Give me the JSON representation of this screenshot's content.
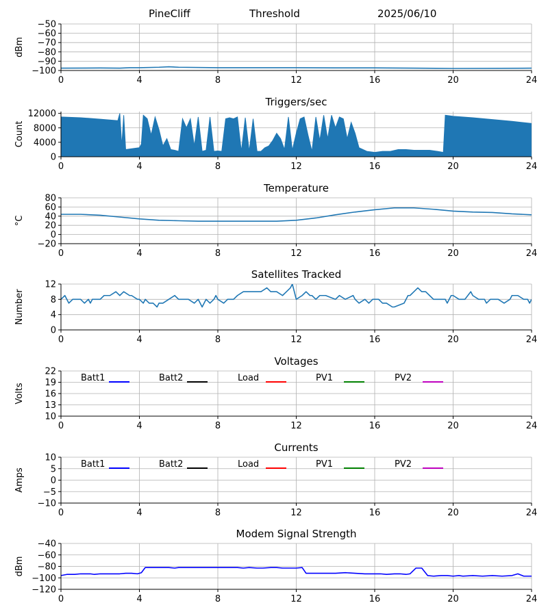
{
  "header": {
    "site": "PineCliff",
    "mode": "Threshold",
    "date": "2025/06/10"
  },
  "colors": {
    "series": "#1f77b4",
    "grid": "#b0b0b0",
    "batt1": "#0000ff",
    "batt2": "#000000",
    "load": "#ff0000",
    "pv1": "#008000",
    "pv2": "#bf00bf",
    "modem": "#0000ff"
  },
  "chart_data": [
    {
      "type": "line",
      "title": "",
      "ylabel": "dBm",
      "xlim": [
        0,
        24
      ],
      "xticks": [
        0,
        4,
        8,
        12,
        16,
        20,
        24
      ],
      "ylim": [
        -100,
        -50
      ],
      "yticks": [
        -100,
        -90,
        -80,
        -70,
        -60,
        -50
      ],
      "grid": true,
      "series": [
        {
          "color": "#1f77b4",
          "x": [
            0,
            2,
            3,
            3.5,
            4,
            5,
            5.5,
            6,
            8,
            12,
            14,
            16,
            18,
            20,
            24
          ],
          "y": [
            -97.5,
            -97.3,
            -97.5,
            -97,
            -97,
            -96.5,
            -96,
            -96.5,
            -97,
            -97,
            -97.2,
            -97.2,
            -97.5,
            -97.8,
            -97.5
          ]
        }
      ]
    },
    {
      "type": "area",
      "title": "Triggers/sec",
      "ylabel": "Count",
      "xlim": [
        0,
        24
      ],
      "xticks": [
        0,
        4,
        8,
        12,
        16,
        20,
        24
      ],
      "ylim": [
        0,
        12500
      ],
      "yticks": [
        0,
        4000,
        8000,
        12000
      ],
      "grid": true,
      "series": [
        {
          "color": "#1f77b4",
          "x": [
            0,
            1,
            2,
            2.9,
            3.0,
            3.1,
            3.2,
            3.3,
            4.0,
            4.1,
            4.2,
            4.4,
            4.6,
            4.8,
            5.0,
            5.2,
            5.4,
            5.6,
            5.8,
            6.0,
            6.2,
            6.4,
            6.6,
            6.8,
            7.0,
            7.2,
            7.4,
            7.6,
            7.8,
            8.0,
            8.2,
            8.4,
            8.6,
            8.8,
            9.0,
            9.2,
            9.4,
            9.6,
            9.8,
            10.0,
            10.2,
            10.4,
            10.6,
            10.8,
            11.0,
            11.2,
            11.4,
            11.6,
            11.8,
            12.0,
            12.2,
            12.4,
            12.6,
            12.8,
            13.0,
            13.2,
            13.4,
            13.6,
            13.8,
            14.0,
            14.2,
            14.4,
            14.6,
            14.8,
            15.0,
            15.2,
            15.6,
            16.0,
            16.4,
            16.8,
            17.2,
            17.6,
            18.0,
            18.4,
            18.8,
            19.2,
            19.5,
            19.6,
            20,
            21,
            22,
            23,
            24
          ],
          "y": [
            11000,
            10800,
            10400,
            10000,
            12000,
            3000,
            11500,
            2000,
            2500,
            3500,
            11500,
            10500,
            6000,
            11000,
            7500,
            3000,
            5000,
            2000,
            1800,
            1500,
            10500,
            8000,
            10500,
            3000,
            11000,
            1500,
            1800,
            11000,
            1500,
            1600,
            1500,
            10500,
            10800,
            10500,
            11000,
            1500,
            10800,
            1500,
            10500,
            1500,
            1500,
            2500,
            3000,
            4500,
            6500,
            5000,
            2000,
            11000,
            1800,
            6500,
            10500,
            11000,
            6000,
            1500,
            11000,
            4500,
            11500,
            5000,
            11500,
            8000,
            11000,
            10500,
            5000,
            9500,
            6500,
            2500,
            1500,
            1200,
            1500,
            1500,
            2000,
            2000,
            1800,
            1800,
            1800,
            1500,
            1200,
            11500,
            11200,
            10800,
            10300,
            9800,
            9200
          ]
        }
      ]
    },
    {
      "type": "line",
      "title": "Temperature",
      "ylabel": "°C",
      "xlim": [
        0,
        24
      ],
      "xticks": [
        0,
        4,
        8,
        12,
        16,
        20,
        24
      ],
      "ylim": [
        -20,
        80
      ],
      "yticks": [
        -20,
        0,
        20,
        40,
        60,
        80
      ],
      "grid": true,
      "series": [
        {
          "color": "#1f77b4",
          "x": [
            0,
            1,
            2,
            3,
            4,
            5,
            6,
            7,
            8,
            9,
            10,
            11,
            12,
            13,
            14,
            15,
            16,
            17,
            18,
            19,
            20,
            21,
            22,
            23,
            24
          ],
          "y": [
            44,
            44,
            42,
            38,
            34,
            31,
            30,
            29,
            29,
            29,
            29,
            29,
            31,
            36,
            43,
            49,
            54,
            58,
            58,
            55,
            51,
            49,
            48,
            45,
            43
          ]
        }
      ]
    },
    {
      "type": "line",
      "title": "Satellites Tracked",
      "ylabel": "Number",
      "xlim": [
        0,
        24
      ],
      "xticks": [
        0,
        4,
        8,
        12,
        16,
        20,
        24
      ],
      "ylim": [
        0,
        12
      ],
      "yticks": [
        0,
        4,
        8,
        12
      ],
      "grid": true,
      "series": [
        {
          "color": "#1f77b4",
          "x": [
            0,
            0.2,
            0.3,
            0.4,
            0.6,
            1,
            1.2,
            1.4,
            1.5,
            1.6,
            2,
            2.2,
            2.5,
            2.8,
            3,
            3.2,
            3.5,
            3.6,
            3.9,
            4.0,
            4.2,
            4.3,
            4.5,
            4.7,
            4.9,
            5.0,
            5.2,
            5.5,
            5.8,
            6.0,
            6.2,
            6.5,
            6.8,
            7.0,
            7.2,
            7.4,
            7.6,
            7.8,
            7.9,
            8.0,
            8.3,
            8.5,
            8.8,
            9.0,
            9.3,
            9.8,
            10.2,
            10.5,
            10.7,
            11.0,
            11.3,
            11.5,
            11.7,
            11.8,
            11.9,
            12.0,
            12.3,
            12.5,
            12.7,
            12.8,
            13.0,
            13.2,
            13.5,
            14.0,
            14.2,
            14.5,
            14.9,
            15.0,
            15.2,
            15.5,
            15.7,
            15.9,
            16.0,
            16.2,
            16.4,
            16.6,
            16.9,
            17.0,
            17.5,
            17.7,
            17.8,
            18.0,
            18.2,
            18.4,
            18.6,
            18.8,
            19.0,
            19.3,
            19.6,
            19.7,
            19.9,
            20.0,
            20.3,
            20.6,
            20.9,
            21.0,
            21.3,
            21.6,
            21.7,
            21.9,
            22.0,
            22.3,
            22.6,
            22.9,
            23.0,
            23.3,
            23.6,
            23.8,
            23.9,
            24.0
          ],
          "y": [
            8,
            9,
            8,
            7,
            8,
            8,
            7,
            8,
            7,
            8,
            8,
            9,
            9,
            10,
            9,
            10,
            9,
            9,
            8,
            8,
            7,
            8,
            7,
            7,
            6,
            7,
            7,
            8,
            9,
            8,
            8,
            8,
            7,
            8,
            6,
            8,
            7,
            8,
            9,
            8,
            7,
            8,
            8,
            9,
            10,
            10,
            10,
            11,
            10,
            10,
            9,
            10,
            11,
            12,
            10,
            8,
            9,
            10,
            9,
            9,
            8,
            9,
            9,
            8,
            9,
            8,
            9,
            8,
            7,
            8,
            7,
            8,
            8,
            8,
            7,
            7,
            6,
            6,
            7,
            9,
            9,
            10,
            11,
            10,
            10,
            9,
            8,
            8,
            8,
            7,
            9,
            9,
            8,
            8,
            10,
            9,
            8,
            8,
            7,
            8,
            8,
            8,
            7,
            8,
            9,
            9,
            8,
            8,
            7,
            8
          ]
        }
      ]
    },
    {
      "type": "line",
      "title": "Voltages",
      "ylabel": "Volts",
      "xlim": [
        0,
        24
      ],
      "xticks": [
        0,
        4,
        8,
        12,
        16,
        20,
        24
      ],
      "ylim": [
        10,
        22
      ],
      "yticks": [
        10,
        13,
        16,
        19,
        22
      ],
      "grid": true,
      "legend": {
        "placement": "top",
        "entries": [
          {
            "name": "Batt1",
            "color": "#0000ff"
          },
          {
            "name": "Batt2",
            "color": "#000000"
          },
          {
            "name": "Load",
            "color": "#ff0000"
          },
          {
            "name": "PV1",
            "color": "#008000"
          },
          {
            "name": "PV2",
            "color": "#bf00bf"
          }
        ]
      },
      "series": []
    },
    {
      "type": "line",
      "title": "Currents",
      "ylabel": "Amps",
      "xlim": [
        0,
        24
      ],
      "xticks": [
        0,
        4,
        8,
        12,
        16,
        20,
        24
      ],
      "ylim": [
        -10,
        10
      ],
      "yticks": [
        -10,
        -5,
        0,
        5,
        10
      ],
      "grid": true,
      "legend": {
        "placement": "top",
        "entries": [
          {
            "name": "Batt1",
            "color": "#0000ff"
          },
          {
            "name": "Batt2",
            "color": "#000000"
          },
          {
            "name": "Load",
            "color": "#ff0000"
          },
          {
            "name": "PV1",
            "color": "#008000"
          },
          {
            "name": "PV2",
            "color": "#bf00bf"
          }
        ]
      },
      "series": []
    },
    {
      "type": "line",
      "title": "Modem Signal Strength",
      "ylabel": "dBm",
      "xlim": [
        0,
        24
      ],
      "xticks": [
        0,
        4,
        8,
        12,
        16,
        20,
        24
      ],
      "ylim": [
        -120,
        -40
      ],
      "yticks": [
        -120,
        -100,
        -80,
        -60,
        -40
      ],
      "grid": true,
      "series": [
        {
          "color": "#0000ff",
          "x": [
            0,
            0.3,
            0.7,
            1,
            1.5,
            1.7,
            2,
            2.5,
            3,
            3.3,
            3.6,
            3.9,
            4.1,
            4.3,
            4.5,
            5,
            5.5,
            5.8,
            6,
            7,
            8,
            9,
            9.3,
            9.6,
            10,
            10.3,
            10.7,
            11,
            11.3,
            12,
            12.3,
            12.5,
            13,
            14,
            14.5,
            15,
            15.5,
            16,
            16.3,
            16.6,
            17,
            17.3,
            17.6,
            17.8,
            18.1,
            18.4,
            18.7,
            19,
            19.4,
            19.7,
            20,
            20.3,
            20.5,
            21,
            21.5,
            22,
            22.5,
            23,
            23.3,
            23.6,
            24
          ],
          "y": [
            -96,
            -94,
            -94,
            -93,
            -93,
            -94,
            -93,
            -93,
            -93,
            -92,
            -92,
            -93,
            -91,
            -82,
            -82,
            -82,
            -82,
            -83,
            -82,
            -82,
            -82,
            -82,
            -83,
            -82,
            -83,
            -83,
            -82,
            -82,
            -83,
            -83,
            -82,
            -92,
            -92,
            -92,
            -91,
            -92,
            -93,
            -93,
            -93,
            -94,
            -93,
            -93,
            -94,
            -93,
            -83,
            -83,
            -96,
            -97,
            -96,
            -96,
            -97,
            -96,
            -97,
            -96,
            -97,
            -96,
            -97,
            -96,
            -93,
            -97,
            -97
          ]
        }
      ]
    }
  ]
}
